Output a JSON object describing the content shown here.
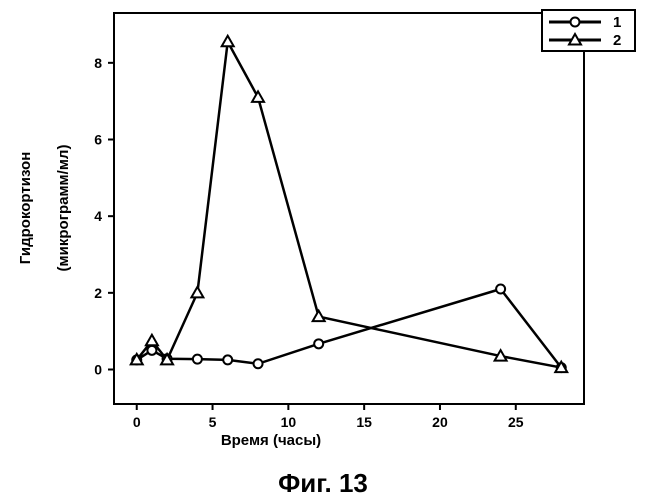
{
  "figure": {
    "caption": "Фиг. 13"
  },
  "chart_data": {
    "type": "line",
    "title": "",
    "xlabel": "Время (часы)",
    "ylabel_line1": "Гидрокортизон",
    "ylabel_line2": "(микрограмм/мл)",
    "xlim": [
      -1.5,
      29.5
    ],
    "ylim": [
      -0.9,
      9.3
    ],
    "xticks": [
      0,
      5,
      10,
      15,
      20,
      25
    ],
    "yticks": [
      0,
      2,
      4,
      6,
      8
    ],
    "grid": false,
    "legend_position": "top-right",
    "series": [
      {
        "name": "1",
        "marker": "circle",
        "x": [
          0,
          1,
          2,
          4,
          6,
          8,
          12,
          24,
          28
        ],
        "y": [
          0.25,
          0.5,
          0.28,
          0.27,
          0.25,
          0.15,
          0.67,
          2.1,
          0.05
        ]
      },
      {
        "name": "2",
        "marker": "triangle",
        "x": [
          0,
          1,
          2,
          4,
          6,
          8,
          12,
          24,
          28
        ],
        "y": [
          0.25,
          0.75,
          0.25,
          2.0,
          8.55,
          7.1,
          1.38,
          0.35,
          0.05
        ]
      }
    ]
  }
}
